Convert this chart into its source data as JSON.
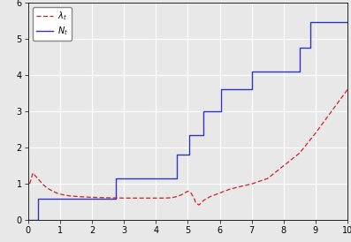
{
  "xlim": [
    0,
    10
  ],
  "ylim": [
    0,
    6
  ],
  "xticks": [
    0,
    1,
    2,
    3,
    4,
    5,
    6,
    7,
    8,
    9,
    10
  ],
  "yticks": [
    0,
    1,
    2,
    3,
    4,
    5,
    6
  ],
  "Nt_color": "#3333bb",
  "lambda_color": "#cc2222",
  "Nt_x": [
    0.0,
    0.3,
    0.3,
    2.75,
    2.75,
    4.65,
    4.65,
    5.05,
    5.05,
    5.5,
    5.5,
    6.05,
    6.05,
    7.0,
    7.0,
    8.5,
    8.5,
    8.85,
    8.85,
    10.0
  ],
  "Nt_y": [
    0.0,
    0.0,
    0.6,
    0.6,
    1.15,
    1.15,
    1.8,
    1.8,
    2.35,
    2.35,
    3.0,
    3.0,
    3.6,
    3.6,
    4.1,
    4.1,
    4.75,
    4.75,
    5.45,
    5.45
  ],
  "lambda_x": [
    0.05,
    0.15,
    0.25,
    0.35,
    0.45,
    0.55,
    0.65,
    0.75,
    0.85,
    0.95,
    1.1,
    1.3,
    1.6,
    2.0,
    2.5,
    3.0,
    3.5,
    4.0,
    4.3,
    4.5,
    4.65,
    4.8,
    4.9,
    5.0,
    5.1,
    5.2,
    5.25,
    5.35,
    5.5,
    5.7,
    6.0,
    6.3,
    6.6,
    7.0,
    7.5,
    8.0,
    8.5,
    9.0,
    9.5,
    10.0
  ],
  "lambda_y": [
    1.0,
    1.3,
    1.2,
    1.1,
    1.0,
    0.92,
    0.86,
    0.81,
    0.77,
    0.73,
    0.7,
    0.67,
    0.65,
    0.63,
    0.62,
    0.61,
    0.61,
    0.61,
    0.61,
    0.62,
    0.65,
    0.7,
    0.75,
    0.8,
    0.75,
    0.6,
    0.48,
    0.42,
    0.55,
    0.65,
    0.75,
    0.85,
    0.92,
    1.0,
    1.15,
    1.5,
    1.85,
    2.4,
    3.0,
    3.6
  ],
  "bg_color": "#e8e8e8",
  "grid_color": "#ffffff"
}
